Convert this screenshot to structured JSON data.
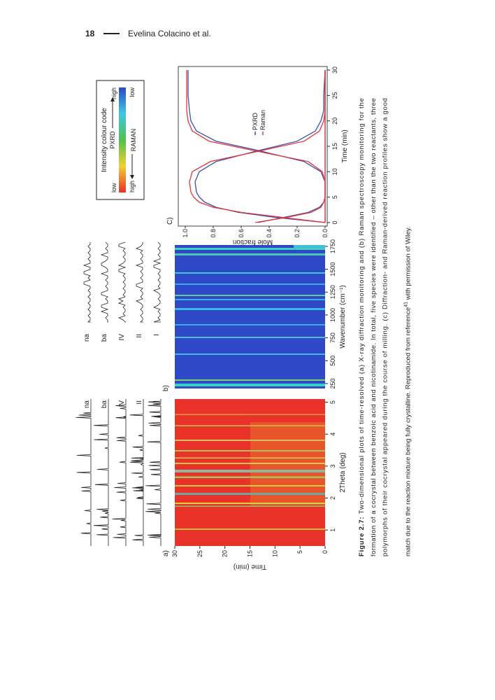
{
  "header": {
    "page_number": "18",
    "author": "Evelina Colacino et al."
  },
  "figure": {
    "panel_a": {
      "label": "a)",
      "trace_labels": [
        "na",
        "ba",
        "IV",
        "II",
        "I"
      ],
      "xlabel": "2Theta (deg)",
      "ylabel": "Time (min)",
      "xlim": [
        0.5,
        5.1
      ],
      "xticks": [
        1,
        2,
        3,
        4,
        5
      ],
      "ylim": [
        0,
        30
      ],
      "yticks": [
        0,
        5,
        10,
        15,
        20,
        25,
        30
      ]
    },
    "panel_b": {
      "label": "b)",
      "trace_labels": [
        "na",
        "ba",
        "IV",
        "II",
        "I"
      ],
      "xlabel": "Wavenumber (cm⁻¹)",
      "xlim": [
        196,
        1765
      ],
      "xticks": [
        250,
        500,
        750,
        1000,
        1250,
        1500,
        1750
      ]
    },
    "panel_c": {
      "label": "C)",
      "xlabel": "Time (min)",
      "ylabel": "Mole fraction",
      "xlim": [
        -0.7,
        30.7
      ],
      "xticks": [
        0,
        5,
        10,
        15,
        20,
        25,
        30
      ],
      "ylim": [
        -0.015,
        1.05
      ],
      "yticks": [
        {
          "value": 0,
          "label": "0.0"
        },
        0.2,
        0.4,
        0.6,
        0.8,
        {
          "value": 1,
          "label": "1.0"
        }
      ],
      "x": [
        0,
        1,
        2,
        3,
        4,
        5,
        6,
        8,
        10,
        12,
        14,
        16,
        18,
        20,
        22,
        25,
        30
      ],
      "series": [
        {
          "name": "PXRD",
          "color": "#3a4fa8",
          "curves": [
            [
              0.48,
              0.3,
              0.12,
              0.04,
              0.01,
              0,
              0,
              0,
              0,
              0,
              0,
              0,
              0,
              0,
              0,
              0,
              0
            ],
            [
              0,
              0.35,
              0.62,
              0.78,
              0.86,
              0.9,
              0.92,
              0.93,
              0.9,
              0.78,
              0.5,
              0.2,
              0.07,
              0.03,
              0.01,
              0.01,
              0
            ],
            [
              0,
              0,
              0,
              0,
              0,
              0,
              0,
              0,
              0.03,
              0.15,
              0.45,
              0.78,
              0.92,
              0.96,
              0.97,
              0.98,
              0.98
            ]
          ]
        },
        {
          "name": "Raman",
          "color": "#e0353a",
          "curves": [
            [
              0.5,
              0.28,
              0.1,
              0.03,
              0.01,
              0,
              0,
              0,
              0,
              0,
              0,
              0,
              0,
              0,
              0,
              0,
              0
            ],
            [
              0,
              0.3,
              0.6,
              0.8,
              0.9,
              0.94,
              0.96,
              0.97,
              0.95,
              0.82,
              0.48,
              0.15,
              0.04,
              0.01,
              0,
              0,
              0
            ],
            [
              0,
              0,
              0,
              0,
              0,
              0,
              0,
              0,
              0.02,
              0.12,
              0.48,
              0.83,
              0.95,
              0.98,
              0.99,
              0.99,
              0.99
            ]
          ]
        }
      ]
    },
    "colour_code": {
      "title": "Intensity colour code",
      "pxrd_low": "low",
      "pxrd_high": "high",
      "pxrd": "PXRD",
      "raman_high": "high",
      "raman_low": "low",
      "raman": "RAMAN"
    }
  },
  "caption": {
    "label": "Figure 2.7:",
    "lines": [
      " Two-dimensional plots of time-resolved (a) X-ray diffraction monitoring and (b) Raman spectroscopy monitoring for the",
      "formation of a cocrystal between benzoic acid and nicotinamide. In total, five species were identified – other than the two reactants, three",
      "polymorphs of their cocrystal appeared during the course of milling. (c) Diffraction- and Raman-derived reaction profiles show a good"
    ],
    "last": {
      "before": "match due to the reaction mixture being fully crystalline. Reproduced from reference",
      "sup": "41",
      "after": " with permission of Wiley."
    }
  }
}
